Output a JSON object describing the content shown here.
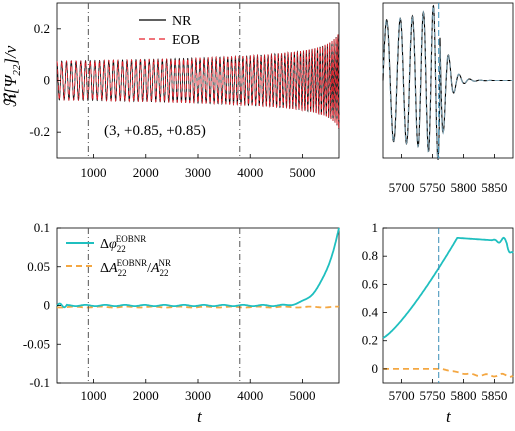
{
  "chart_data": [
    {
      "type": "line",
      "panel": "top-left",
      "ylabel": "ℜ[Ψ₂₂]/ν",
      "xlim": [
        300,
        5700
      ],
      "ylim": [
        -0.3,
        0.3
      ],
      "xticks": [
        "1000",
        "2000",
        "3000",
        "4000",
        "5000"
      ],
      "yticks": [
        "-0.2",
        "0",
        "0.2"
      ],
      "series": [
        {
          "name": "NR",
          "color": "#000000",
          "style": "solid"
        },
        {
          "name": "EOB",
          "color": "#e8202a",
          "style": "dashed"
        }
      ],
      "vlines": [
        900,
        3800
      ],
      "annotation": "(3, +0.85, +0.85)",
      "legend": "top-right"
    },
    {
      "type": "line",
      "panel": "top-right",
      "xlim": [
        5670,
        5880
      ],
      "ylim": [
        -0.3,
        0.3
      ],
      "xticks": [
        "5700",
        "5750",
        "5800",
        "5850"
      ],
      "series": [
        {
          "name": "NR",
          "color": "#000000",
          "style": "solid"
        },
        {
          "name": "EOB",
          "color": "#e8202a",
          "style": "dashed"
        }
      ],
      "vline": 5760
    },
    {
      "type": "line",
      "panel": "bottom-left",
      "xlabel": "t",
      "xlim": [
        300,
        5700
      ],
      "ylim": [
        -0.1,
        0.1
      ],
      "xticks": [
        "1000",
        "2000",
        "3000",
        "4000",
        "5000"
      ],
      "yticks": [
        "-0.1",
        "-0.05",
        "0",
        "0.05",
        "0.1"
      ],
      "series": [
        {
          "name": "Δφ₂₂^EOBNR",
          "color": "#1fbfbf",
          "style": "solid"
        },
        {
          "name": "ΔA₂₂^EOBNR/A₂₂^NR",
          "color": "#f4a742",
          "style": "dashed"
        }
      ],
      "vlines": [
        900,
        3800
      ],
      "legend": "top-left"
    },
    {
      "type": "line",
      "panel": "bottom-right",
      "xlabel": "t",
      "xlim": [
        5670,
        5880
      ],
      "ylim": [
        -0.1,
        1.0
      ],
      "xticks": [
        "5700",
        "5750",
        "5800",
        "5850"
      ],
      "yticks": [
        "0",
        "0.2",
        "0.4",
        "0.6",
        "0.8",
        "1"
      ],
      "series": [
        {
          "name": "phase",
          "color": "#1fbfbf",
          "style": "solid",
          "x": [
            5670,
            5700,
            5730,
            5760,
            5780,
            5800,
            5820,
            5840,
            5860,
            5880
          ],
          "y": [
            0.22,
            0.33,
            0.5,
            0.72,
            0.85,
            0.93,
            0.92,
            0.91,
            0.9,
            0.8
          ]
        },
        {
          "name": "amplitude",
          "color": "#f4a742",
          "style": "dashed",
          "x": [
            5670,
            5760,
            5790,
            5810,
            5840,
            5860,
            5880
          ],
          "y": [
            0.0,
            0.0,
            -0.02,
            -0.04,
            -0.05,
            -0.03,
            -0.01
          ]
        }
      ],
      "vline": 5760
    }
  ],
  "legend_top": {
    "nr": "NR",
    "eob": "EOB"
  },
  "legend_bottom": {
    "phase_sup": "EOBNR",
    "amp_sup1": "EOBNR",
    "amp_sup2": "NR"
  },
  "annotation": "(3, +0.85, +0.85)"
}
